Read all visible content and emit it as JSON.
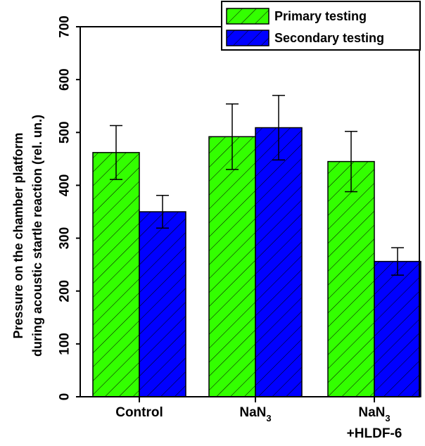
{
  "chart_data": {
    "type": "bar",
    "categories": [
      {
        "lines": [
          {
            "text": "Control",
            "sub": ""
          }
        ]
      },
      {
        "lines": [
          {
            "text": "NaN",
            "sub": "3"
          }
        ]
      },
      {
        "lines": [
          {
            "text": "NaN",
            "sub": "3"
          },
          {
            "text": "+HLDF-6",
            "sub": ""
          }
        ]
      }
    ],
    "series": [
      {
        "name": "Primary testing",
        "color": "#33ff00",
        "values": [
          462,
          492,
          445
        ],
        "errors": [
          51,
          62,
          57
        ]
      },
      {
        "name": "Secondary testing",
        "color": "#0000ff",
        "values": [
          350,
          509,
          256
        ],
        "errors": [
          31,
          61,
          26
        ]
      }
    ],
    "ylabel_lines": [
      "Pressure on the chamber platform",
      "during acoustic startle reaction (rel. un.)"
    ],
    "xlabel": "",
    "ylim": [
      0,
      700
    ],
    "yticks": [
      0,
      100,
      200,
      300,
      400,
      500,
      600,
      700
    ],
    "legend_position": "top-right",
    "grid": false,
    "hatch": "diagonal"
  }
}
